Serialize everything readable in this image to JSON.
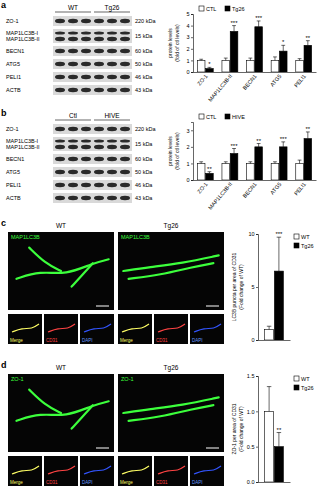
{
  "panels": [
    {
      "letter": "a",
      "blot": {
        "groups": [
          "WT",
          "Tg26"
        ],
        "rows": [
          {
            "label": [
              "ZO-1"
            ],
            "size": "220 kDa"
          },
          {
            "label": [
              "MAP1LC3B-I",
              "MAP1LC3B-II"
            ],
            "size": "15 kDa"
          },
          {
            "label": [
              "BECN1"
            ],
            "size": "60 kDa"
          },
          {
            "label": [
              "ATG5"
            ],
            "size": "50 kDa"
          },
          {
            "label": [
              "PELI1"
            ],
            "size": "46 kDa"
          },
          {
            "label": [
              "ACTB"
            ],
            "size": "43 kDa"
          }
        ]
      }
    },
    {
      "letter": "b",
      "blot": {
        "groups": [
          "Ctl",
          "HIVE"
        ],
        "rows": [
          {
            "label": [
              "ZO-1"
            ],
            "size": "220 kDa"
          },
          {
            "label": [
              "MAP1LC3B-I",
              "MAP1LC3B-II"
            ],
            "size": "15 kDa"
          },
          {
            "label": [
              "BECN1"
            ],
            "size": "60 kDa"
          },
          {
            "label": [
              "ATG5"
            ],
            "size": "50 kDa"
          },
          {
            "label": [
              "PELI1"
            ],
            "size": "46 kDa"
          },
          {
            "label": [
              "ACTB"
            ],
            "size": "43 kDa"
          }
        ]
      }
    },
    {
      "letter": "c",
      "images": {
        "groups": [
          "WT",
          "Tg26"
        ],
        "stain": "MAP1LC3B",
        "subpanels": [
          "Merge",
          "CD31",
          "DAPI"
        ]
      }
    },
    {
      "letter": "d",
      "images": {
        "groups": [
          "WT",
          "Tg26"
        ],
        "stain": "ZO-1",
        "subpanels": [
          "Merge",
          "CD31",
          "DAPI"
        ]
      }
    }
  ],
  "chart_data": [
    {
      "type": "bar",
      "ylabel": [
        "protein levels",
        "(fold of ctl levels)"
      ],
      "categories": [
        "ZO-1",
        "MAP1LC3B-II",
        "BECN1",
        "ATG5",
        "PELI1"
      ],
      "series": [
        {
          "name": "CTL",
          "color": "#ffffff",
          "values": [
            1,
            1,
            1,
            1,
            1
          ],
          "errors": [
            0.1,
            0.2,
            0.2,
            0.3,
            0.15
          ]
        },
        {
          "name": "Tg26",
          "color": "#000000",
          "values": [
            0.3,
            3.5,
            3.9,
            1.8,
            2.3
          ],
          "errors": [
            0.1,
            0.5,
            0.5,
            0.5,
            0.4
          ]
        }
      ],
      "annotations": [
        "*",
        "***",
        "***",
        "*",
        "**"
      ],
      "ylim": [
        0,
        5
      ],
      "yticks": [
        0,
        1,
        2,
        3,
        4,
        5
      ],
      "legend": "top"
    },
    {
      "type": "bar",
      "ylabel": [
        "protein levels",
        "(fold of ctl levels)"
      ],
      "categories": [
        "ZO-1",
        "MAP1LC3B-II",
        "BECN1",
        "ATG5",
        "PELI1"
      ],
      "series": [
        {
          "name": "CTL",
          "color": "#ffffff",
          "values": [
            1,
            1,
            1,
            1,
            1
          ],
          "errors": [
            0.1,
            0.1,
            0.1,
            0.1,
            0.2
          ]
        },
        {
          "name": "HIVE",
          "color": "#000000",
          "values": [
            0.4,
            1.6,
            2.0,
            2.0,
            2.5
          ],
          "errors": [
            0.1,
            0.3,
            0.2,
            0.3,
            0.4
          ]
        }
      ],
      "annotations": [
        "**",
        "***",
        "**",
        "***",
        "**"
      ],
      "ylim": [
        0,
        3.5
      ],
      "yticks": [
        0,
        1,
        2,
        3
      ],
      "legend": "top"
    },
    {
      "type": "bar",
      "ylabel": [
        "LC3B puncta per area of CD31",
        "(Fold change of WT)"
      ],
      "categories": [
        null
      ],
      "series": [
        {
          "name": "WT",
          "color": "#ffffff",
          "values": [
            1
          ],
          "errors": [
            0.3
          ]
        },
        {
          "name": "Tg26",
          "color": "#000000",
          "values": [
            6.5
          ],
          "errors": [
            3.2
          ]
        }
      ],
      "annotations": [
        "***"
      ],
      "ylim": [
        0,
        10
      ],
      "yticks": [
        0,
        5,
        10
      ],
      "legend": "right"
    },
    {
      "type": "bar",
      "ylabel": [
        "ZO-1 per area of CD31",
        "(Fold change of WT)"
      ],
      "categories": [
        null
      ],
      "series": [
        {
          "name": "WT",
          "color": "#ffffff",
          "values": [
            1
          ],
          "errors": [
            0.35
          ]
        },
        {
          "name": "Tg26",
          "color": "#000000",
          "values": [
            0.5
          ],
          "errors": [
            0.2
          ]
        }
      ],
      "annotations": [
        "**"
      ],
      "ylim": [
        0,
        1.5
      ],
      "yticks": [
        {
          "value": 0,
          "label": "0.0"
        },
        {
          "value": 0.5,
          "label": "0.5"
        },
        {
          "value": 1,
          "label": "1.0"
        },
        {
          "value": 1.5,
          "label": "1.5"
        }
      ],
      "legend": "right"
    }
  ]
}
